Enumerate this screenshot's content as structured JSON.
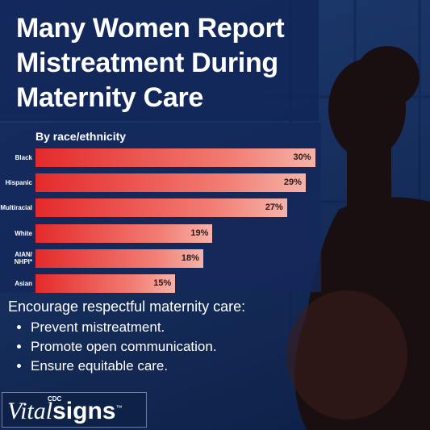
{
  "chart_data": {
    "type": "bar",
    "orientation": "horizontal",
    "title": "Many Women Report Mistreatment During Maternity Care",
    "subtitle": "By race/ethnicity",
    "categories": [
      "Black",
      "Hispanic",
      "Multiracial",
      "White",
      "AIAN/ NHPI*",
      "Asian"
    ],
    "values": [
      30,
      29,
      27,
      19,
      18,
      15
    ],
    "value_labels": [
      "30%",
      "29%",
      "27%",
      "19%",
      "18%",
      "15%"
    ],
    "color": "#e42a2b"
  },
  "callout": {
    "heading": "Encourage respectful maternity care:",
    "bullets": [
      "Prevent mistreatment.",
      "Promote open communication.",
      "Ensure equitable care."
    ]
  },
  "logo": {
    "small": "CDC",
    "word1": "Vital",
    "word2": "signs",
    "mark": "™"
  }
}
